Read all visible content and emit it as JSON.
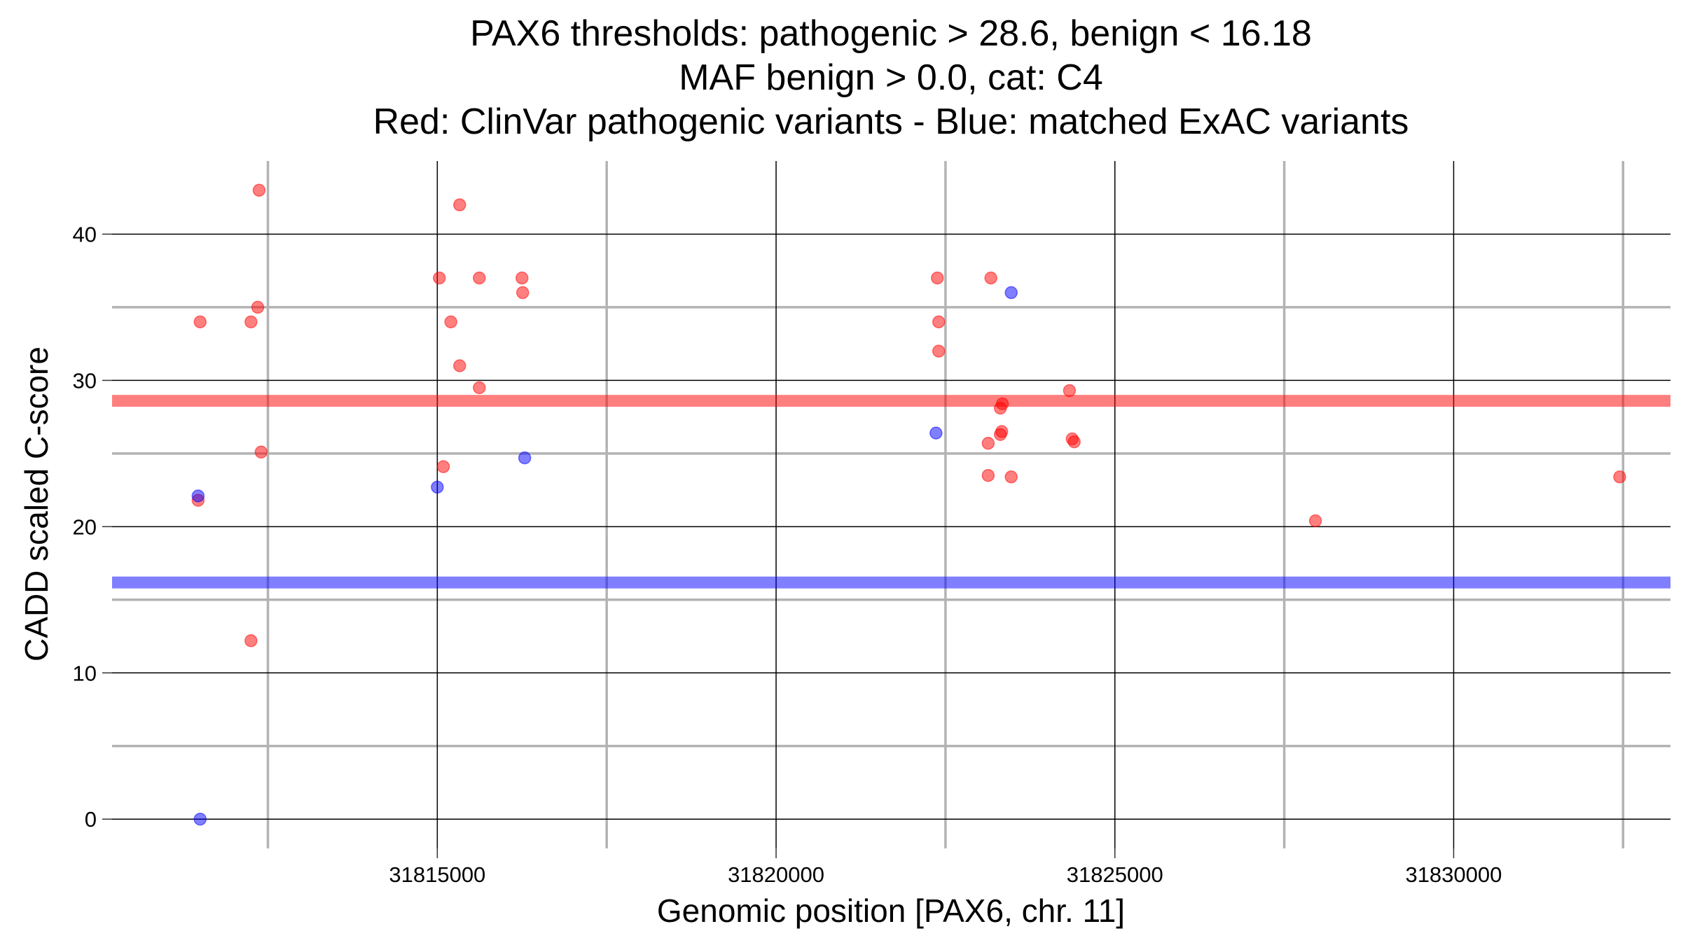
{
  "chart_data": {
    "type": "scatter",
    "title": [
      "PAX6 thresholds: pathogenic > 28.6, benign < 16.18",
      "MAF benign > 0.0, cat: C4",
      "Red: ClinVar pathogenic variants - Blue: matched ExAC variants"
    ],
    "xlabel": "Genomic position [PAX6, chr. 11]",
    "ylabel": "CADD scaled C-score",
    "xlim": [
      31810200,
      31833200
    ],
    "ylim": [
      -2,
      45
    ],
    "x_ticks": [
      31815000,
      31820000,
      31825000,
      31830000
    ],
    "x_tick_labels": [
      "31815000",
      "31820000",
      "31825000",
      "31830000"
    ],
    "x_minor_ticks": [
      31812500,
      31817500,
      31822500,
      31827500,
      31832500
    ],
    "y_ticks": [
      0,
      10,
      20,
      30,
      40
    ],
    "y_tick_labels": [
      "0",
      "10",
      "20",
      "30",
      "40"
    ],
    "y_minor_ticks": [
      5,
      15,
      25,
      35
    ],
    "colors": {
      "pathogenic": "#ff0000",
      "benign": "#0000ff"
    },
    "thresholds": [
      {
        "name": "pathogenic",
        "value": 28.6,
        "color": "#ff0000"
      },
      {
        "name": "benign",
        "value": 16.18,
        "color": "#0000ff"
      }
    ],
    "series": [
      {
        "name": "ClinVar pathogenic variants",
        "color": "#ff0000",
        "points": [
          {
            "x": 31812370,
            "y": 43.0
          },
          {
            "x": 31812350,
            "y": 35.0
          },
          {
            "x": 31811500,
            "y": 34.0
          },
          {
            "x": 31812250,
            "y": 34.0
          },
          {
            "x": 31812400,
            "y": 25.1
          },
          {
            "x": 31811470,
            "y": 21.8
          },
          {
            "x": 31812250,
            "y": 12.2
          },
          {
            "x": 31815330,
            "y": 42.0
          },
          {
            "x": 31815030,
            "y": 37.0
          },
          {
            "x": 31815620,
            "y": 37.0
          },
          {
            "x": 31816250,
            "y": 37.0
          },
          {
            "x": 31816260,
            "y": 36.0
          },
          {
            "x": 31815200,
            "y": 34.0
          },
          {
            "x": 31815330,
            "y": 31.0
          },
          {
            "x": 31815620,
            "y": 29.5
          },
          {
            "x": 31815090,
            "y": 24.1
          },
          {
            "x": 31822380,
            "y": 37.0
          },
          {
            "x": 31823170,
            "y": 37.0
          },
          {
            "x": 31822400,
            "y": 34.0
          },
          {
            "x": 31822400,
            "y": 32.0
          },
          {
            "x": 31824330,
            "y": 29.3
          },
          {
            "x": 31823340,
            "y": 28.4
          },
          {
            "x": 31823310,
            "y": 28.1
          },
          {
            "x": 31823330,
            "y": 26.5
          },
          {
            "x": 31823310,
            "y": 26.3
          },
          {
            "x": 31823130,
            "y": 25.7
          },
          {
            "x": 31824370,
            "y": 26.0
          },
          {
            "x": 31824400,
            "y": 25.8
          },
          {
            "x": 31823130,
            "y": 23.5
          },
          {
            "x": 31823470,
            "y": 23.4
          },
          {
            "x": 31827960,
            "y": 20.4
          },
          {
            "x": 31832450,
            "y": 23.4
          }
        ]
      },
      {
        "name": "matched ExAC variants",
        "color": "#0000ff",
        "points": [
          {
            "x": 31811470,
            "y": 22.1
          },
          {
            "x": 31811500,
            "y": 0.0
          },
          {
            "x": 31815000,
            "y": 22.7
          },
          {
            "x": 31816290,
            "y": 24.7
          },
          {
            "x": 31822360,
            "y": 26.4
          },
          {
            "x": 31823470,
            "y": 36.0
          }
        ]
      }
    ]
  }
}
